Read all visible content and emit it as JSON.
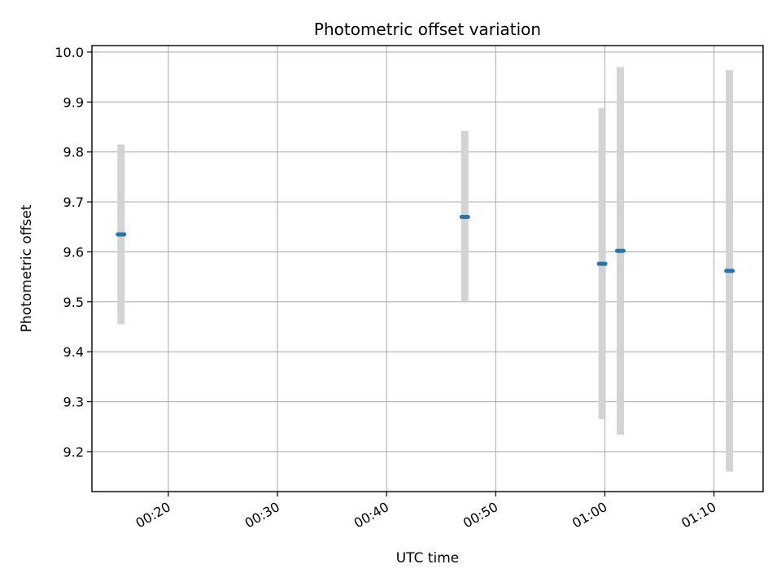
{
  "chart_data": {
    "type": "scatter",
    "title": "Photometric offset variation",
    "xlabel": "UTC time",
    "ylabel": "Photometric offset",
    "xlim": [
      "00:13:00",
      "01:14:30"
    ],
    "ylim": [
      9.12,
      10.013
    ],
    "x_ticks": [
      "00:20",
      "00:30",
      "00:40",
      "00:50",
      "01:00",
      "01:10"
    ],
    "y_ticks": [
      "9.2",
      "9.3",
      "9.4",
      "9.5",
      "9.6",
      "9.7",
      "9.8",
      "9.9",
      "10.0"
    ],
    "grid": true,
    "points": [
      {
        "x": "00:15:40",
        "y": 9.635,
        "yerr_low": 9.455,
        "yerr_high": 9.815
      },
      {
        "x": "00:47:10",
        "y": 9.67,
        "yerr_low": 9.5,
        "yerr_high": 9.842
      },
      {
        "x": "00:59:45",
        "y": 9.576,
        "yerr_low": 9.265,
        "yerr_high": 9.888
      },
      {
        "x": "01:01:25",
        "y": 9.602,
        "yerr_low": 9.234,
        "yerr_high": 9.97
      },
      {
        "x": "01:11:25",
        "y": 9.562,
        "yerr_low": 9.16,
        "yerr_high": 9.964
      }
    ],
    "colors": {
      "marker": "#1f77b4",
      "errorbar": "#d3d3d3",
      "grid": "#b0b0b0",
      "axes": "#000000"
    }
  }
}
